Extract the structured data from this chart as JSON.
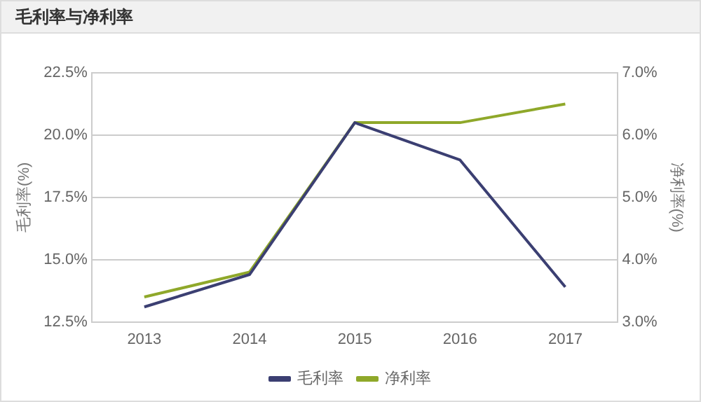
{
  "chart_data": {
    "type": "line",
    "title": "毛利率与净利率",
    "ylabel": "毛利率(%)",
    "y2label": "净利率(%)",
    "categories": [
      "2013",
      "2014",
      "2015",
      "2016",
      "2017"
    ],
    "series": [
      {
        "name": "毛利率",
        "color": "#3b3f72",
        "values": [
          13.1,
          14.4,
          20.5,
          19.0,
          13.9
        ]
      },
      {
        "name": "净利率",
        "color": "#8fa82a",
        "axis": "y2",
        "values": [
          3.4,
          3.8,
          6.2,
          6.2,
          6.5
        ]
      }
    ],
    "ylim": [
      12.5,
      22.5
    ],
    "yticks": [
      {
        "value": 12.5,
        "label": "12.5%"
      },
      {
        "value": 15,
        "label": "15.0%"
      },
      {
        "value": 17.5,
        "label": "17.5%"
      },
      {
        "value": 20,
        "label": "20.0%"
      },
      {
        "value": 22.5,
        "label": "22.5%"
      }
    ],
    "y2lim": [
      3,
      7
    ],
    "y2ticks": [
      {
        "value": 3,
        "label": "3.0%"
      },
      {
        "value": 4,
        "label": "4.0%"
      },
      {
        "value": 5,
        "label": "5.0%"
      },
      {
        "value": 6,
        "label": "6.0%"
      },
      {
        "value": 7,
        "label": "7.0%"
      }
    ],
    "grid": "y",
    "legend": "bottom",
    "marker": "none",
    "line_style": "solid"
  }
}
